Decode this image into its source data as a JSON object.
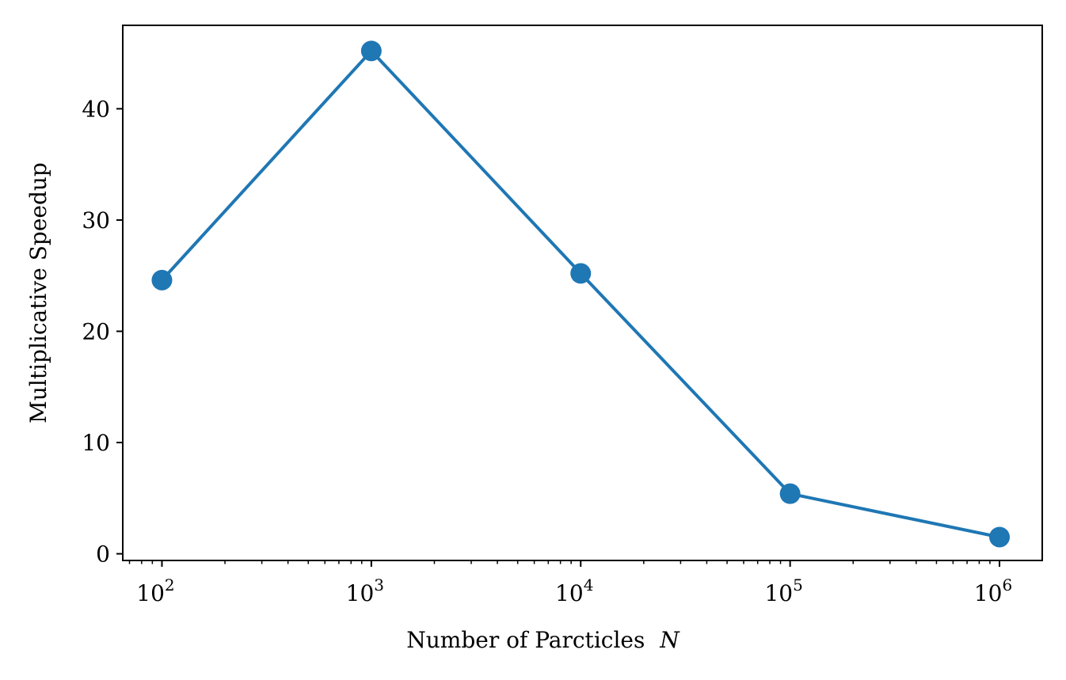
{
  "chart_data": {
    "type": "line",
    "title": "",
    "xlabel": "Number of Parcticles",
    "xlabel_symbol": "N",
    "ylabel": "Multiplicative Speedup",
    "x_scale": "log",
    "x": [
      100,
      1000,
      10000,
      100000,
      1000000
    ],
    "xlim": [
      65,
      1600000
    ],
    "x_ticks": [
      {
        "base": "10",
        "exp": "2"
      },
      {
        "base": "10",
        "exp": "3"
      },
      {
        "base": "10",
        "exp": "4"
      },
      {
        "base": "10",
        "exp": "5"
      },
      {
        "base": "10",
        "exp": "6"
      }
    ],
    "ylim": [
      -0.6,
      47.5
    ],
    "y_ticks": [
      "0",
      "10",
      "20",
      "30",
      "40"
    ],
    "series": [
      {
        "values": [
          24.6,
          45.2,
          25.2,
          5.4,
          1.5
        ],
        "color": "#1f77b4",
        "marker": "circle"
      }
    ],
    "grid": false,
    "legend": "none"
  }
}
